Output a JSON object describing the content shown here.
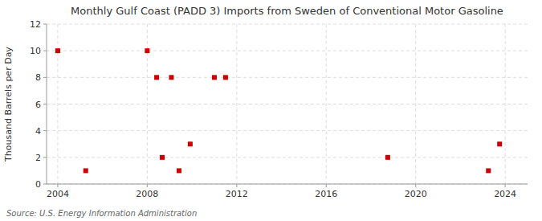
{
  "chart_data": {
    "type": "scatter",
    "title": "Monthly Gulf Coast (PADD 3) Imports from Sweden of Conventional Motor Gasoline",
    "y_label": "Thousand Barrels per Day",
    "annotations": [
      "Source: U.S. Energy Information Administration"
    ],
    "x": [
      2004.0,
      2005.25,
      2008.0,
      2008.42,
      2008.67,
      2009.08,
      2009.42,
      2009.92,
      2011.0,
      2011.5,
      2018.75,
      2023.25,
      2023.75
    ],
    "values": [
      10,
      1,
      10,
      8,
      2,
      8,
      1,
      3,
      8,
      8,
      2,
      1,
      3
    ],
    "color": "#cc0000",
    "marker": "square",
    "xlim": [
      2003.5,
      2025
    ],
    "ylim": [
      0,
      12
    ],
    "xticks": [
      2004,
      2008,
      2012,
      2016,
      2020,
      2024
    ],
    "yticks": [
      0,
      2,
      4,
      6,
      8,
      10,
      12
    ],
    "grid": true
  }
}
